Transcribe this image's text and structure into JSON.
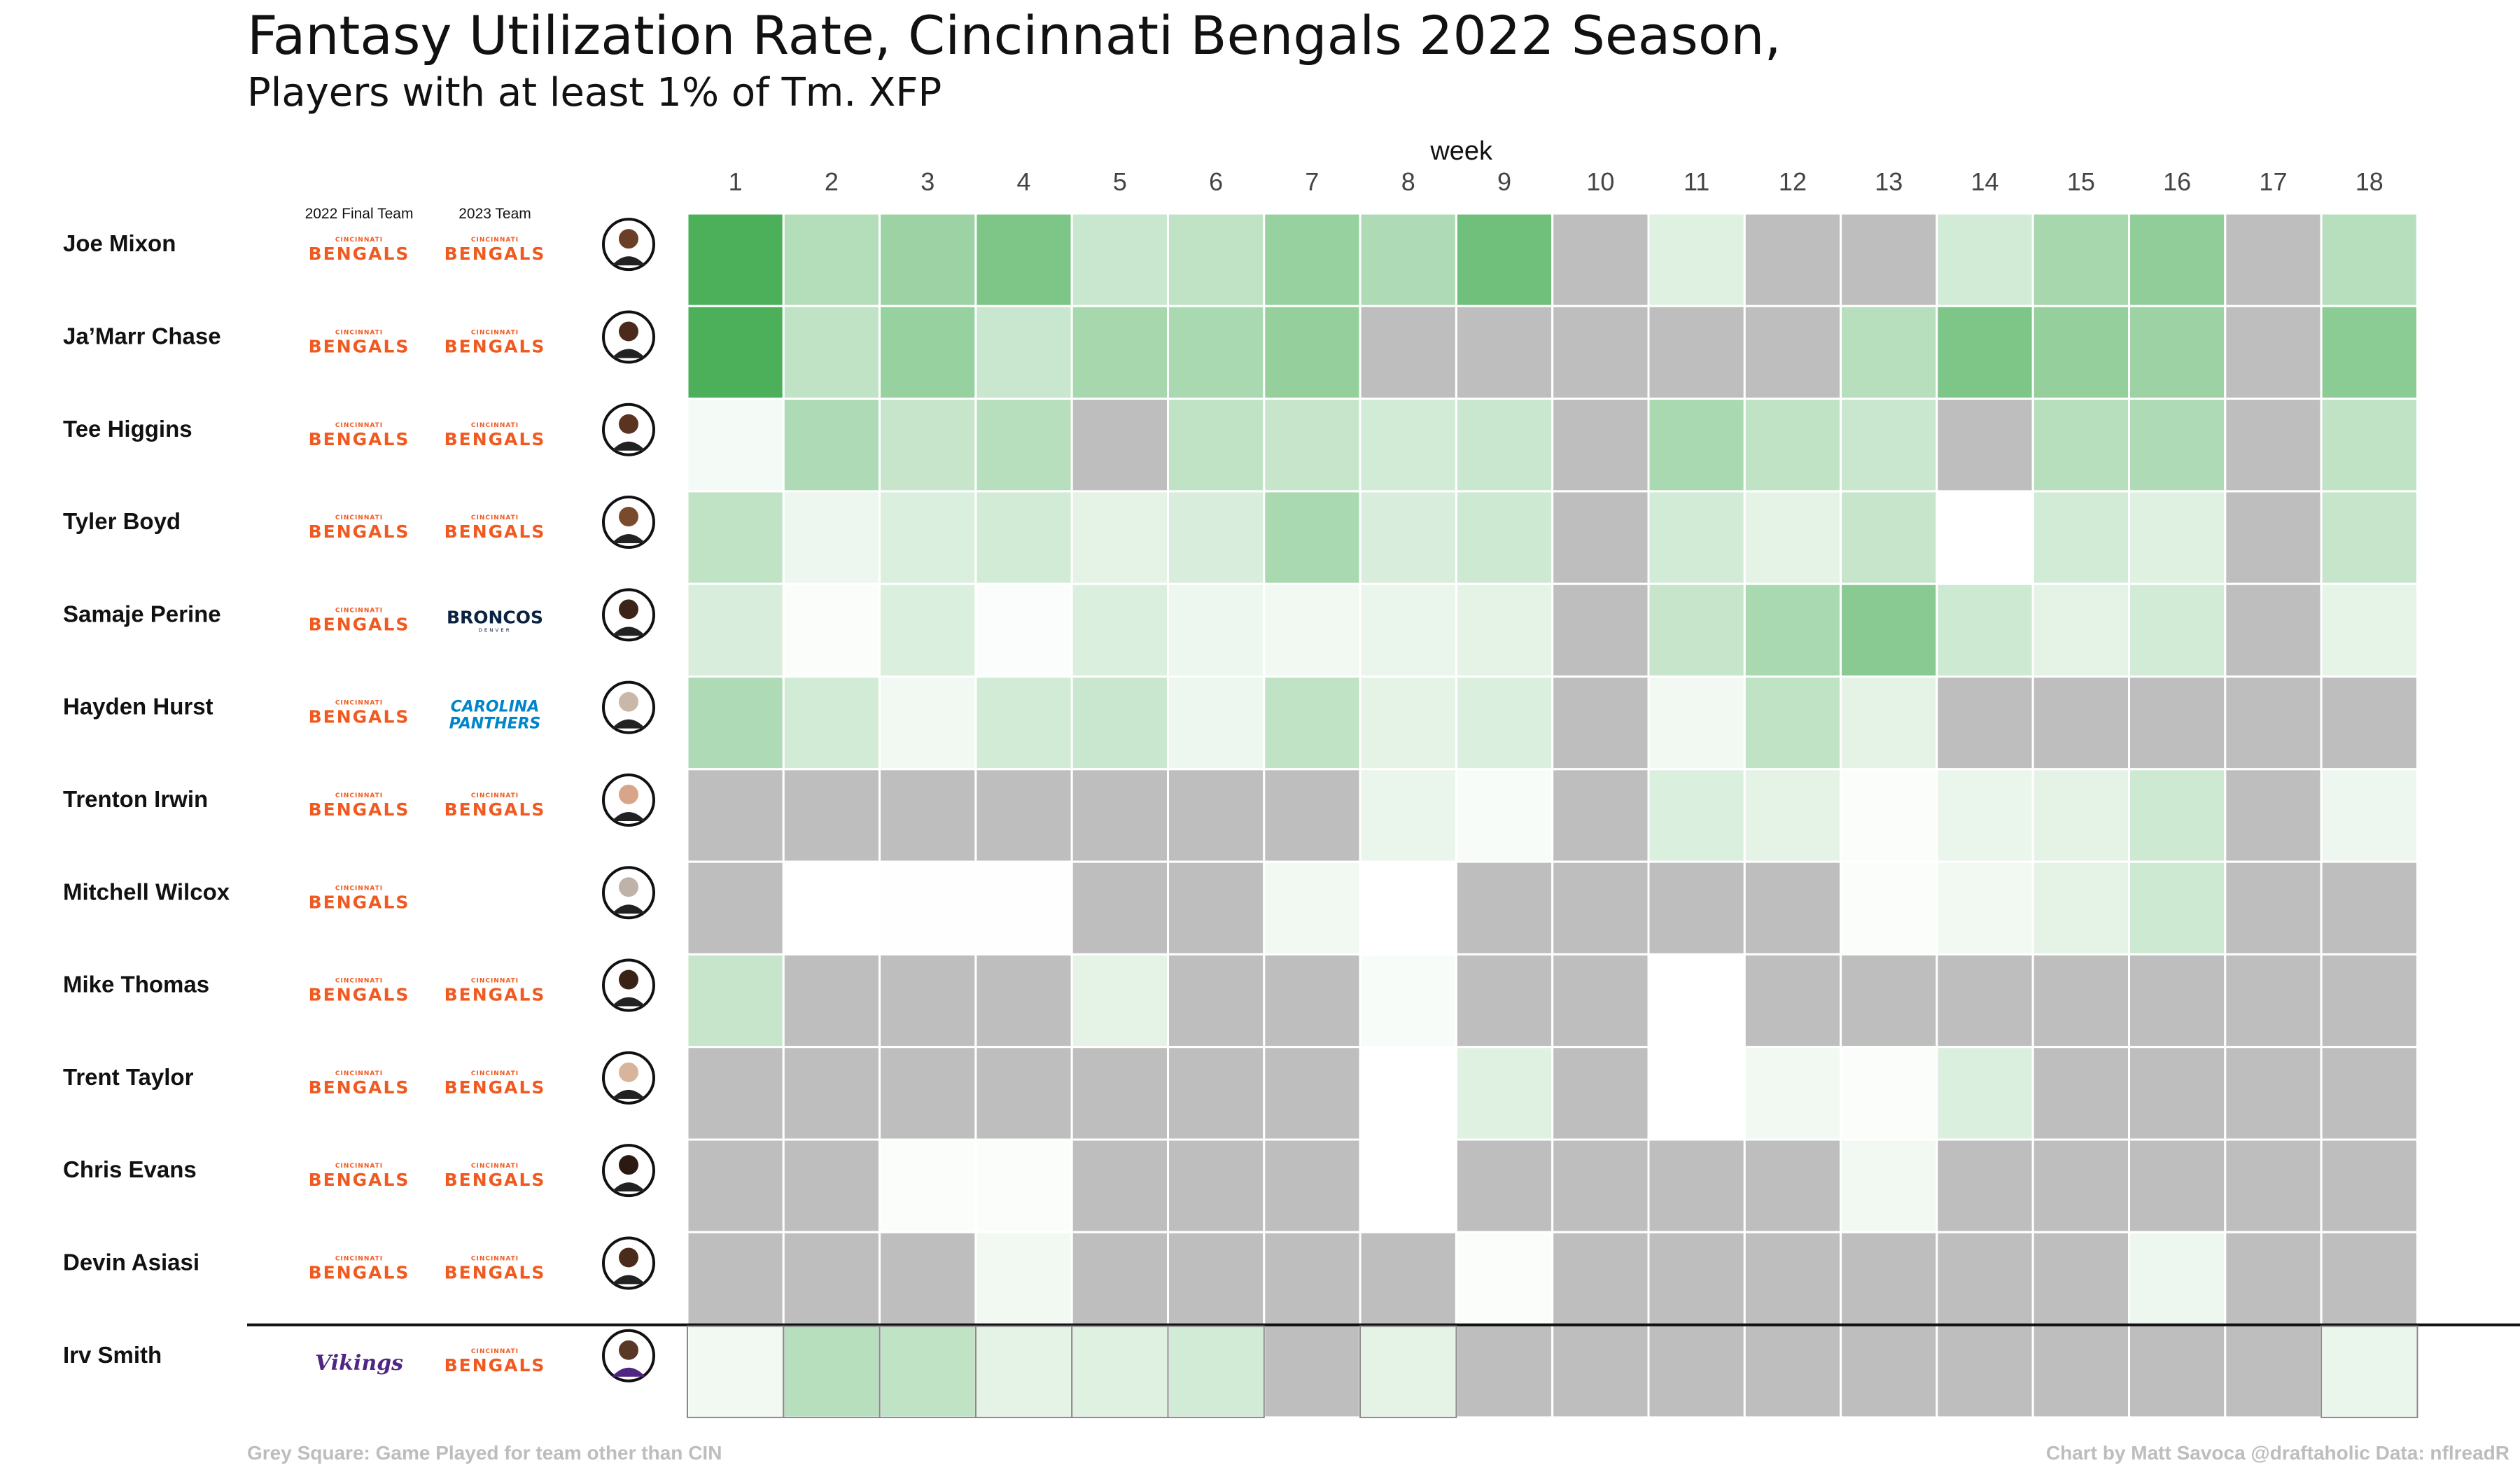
{
  "title": "Fantasy Utilization Rate, Cincinnati Bengals 2022 Season,",
  "subtitle": "Players with at least 1% of Tm. XFP",
  "footer": {
    "left": "Grey Square: Game Played for team other than CIN",
    "right": "Chart by Matt Savoca    @draftaholic    Data: nflreadR"
  },
  "colors": {
    "grey_cell": "#bebebe",
    "green_low": "#ffffff",
    "green_high": "#4caf5a",
    "bengals_orange": "#f05a20",
    "broncos_navy": "#0a2342",
    "panthers_blue": "#0085ca",
    "vikings_purple": "#4f2683"
  },
  "chart_data": {
    "type": "heatmap",
    "x_label": "week",
    "x": [
      "1",
      "2",
      "3",
      "4",
      "5",
      "6",
      "7",
      "8",
      "9",
      "10",
      "11",
      "12",
      "13",
      "14",
      "15",
      "16",
      "17",
      "18"
    ],
    "column_headers": [
      "2022 Final Team",
      "2023 Team"
    ],
    "value_scale": [
      0,
      1
    ],
    "null_meaning": "Grey Square: Game Played for team other than CIN",
    "rows": [
      {
        "player": "Joe Mixon",
        "team_2022": "BENGALS",
        "team_2023": "BENGALS",
        "values": [
          1.0,
          0.42,
          0.55,
          0.72,
          0.3,
          0.35,
          0.58,
          0.45,
          0.8,
          null,
          0.18,
          null,
          null,
          0.25,
          0.5,
          0.62,
          null,
          0.4
        ]
      },
      {
        "player": "Ja'Marr Chase",
        "team_2022": "BENGALS",
        "team_2023": "BENGALS",
        "values": [
          1.0,
          0.35,
          0.58,
          0.3,
          0.5,
          0.48,
          0.6,
          null,
          null,
          null,
          null,
          null,
          0.4,
          0.72,
          0.6,
          0.55,
          null,
          0.65
        ]
      },
      {
        "player": "Tee Higgins",
        "team_2022": "BENGALS",
        "team_2023": "BENGALS",
        "values": [
          0.06,
          0.45,
          0.32,
          0.4,
          null,
          0.35,
          0.32,
          0.25,
          0.3,
          null,
          0.48,
          0.35,
          0.3,
          null,
          0.4,
          0.45,
          null,
          0.35
        ]
      },
      {
        "player": "Tyler Boyd",
        "team_2022": "BENGALS",
        "team_2023": "BENGALS",
        "values": [
          0.35,
          0.1,
          0.2,
          0.25,
          0.15,
          0.22,
          0.48,
          0.22,
          0.28,
          null,
          0.25,
          0.15,
          0.32,
          0.0,
          0.25,
          0.18,
          null,
          0.32
        ]
      },
      {
        "player": "Samaje Perine",
        "team_2022": "BENGALS",
        "team_2023": "BRONCOS",
        "values": [
          0.22,
          0.03,
          0.2,
          0.02,
          0.2,
          0.1,
          0.08,
          0.12,
          0.15,
          null,
          0.32,
          0.48,
          0.66,
          0.28,
          0.15,
          0.25,
          null,
          0.14
        ]
      },
      {
        "player": "Hayden Hurst",
        "team_2022": "BENGALS",
        "team_2023": "CAROLINA PANTHERS",
        "values": [
          0.45,
          0.25,
          0.08,
          0.25,
          0.3,
          0.1,
          0.35,
          0.15,
          0.2,
          null,
          0.08,
          0.35,
          0.15,
          null,
          null,
          null,
          null,
          null
        ]
      },
      {
        "player": "Trenton Irwin",
        "team_2022": "BENGALS",
        "team_2023": "BENGALS",
        "values": [
          null,
          null,
          null,
          null,
          null,
          null,
          null,
          0.12,
          0.04,
          null,
          0.2,
          0.15,
          0.03,
          0.12,
          0.15,
          0.28,
          null,
          0.1
        ]
      },
      {
        "player": "Mitchell Wilcox",
        "team_2022": "BENGALS",
        "team_2023": "",
        "values": [
          null,
          0.0,
          0.01,
          0.01,
          null,
          null,
          0.08,
          0.0,
          null,
          null,
          null,
          null,
          0.03,
          0.08,
          0.15,
          0.28,
          null,
          null
        ]
      },
      {
        "player": "Mike Thomas",
        "team_2022": "BENGALS",
        "team_2023": "BENGALS",
        "values": [
          0.32,
          null,
          null,
          null,
          0.15,
          null,
          null,
          0.04,
          null,
          null,
          0.0,
          null,
          null,
          null,
          null,
          null,
          null,
          null
        ]
      },
      {
        "player": "Trent Taylor",
        "team_2022": "BENGALS",
        "team_2023": "BENGALS",
        "values": [
          null,
          null,
          null,
          null,
          null,
          null,
          null,
          0.0,
          0.18,
          null,
          0.0,
          0.07,
          0.03,
          0.2,
          null,
          null,
          null,
          null
        ]
      },
      {
        "player": "Chris Evans",
        "team_2022": "BENGALS",
        "team_2023": "BENGALS",
        "values": [
          null,
          null,
          0.03,
          0.03,
          null,
          null,
          null,
          0.0,
          null,
          null,
          null,
          null,
          0.08,
          null,
          null,
          null,
          null,
          null
        ]
      },
      {
        "player": "Devin Asiasi",
        "team_2022": "BENGALS",
        "team_2023": "BENGALS",
        "values": [
          null,
          null,
          null,
          0.08,
          null,
          null,
          null,
          null,
          0.03,
          null,
          null,
          null,
          null,
          null,
          null,
          0.1,
          null,
          null
        ]
      },
      {
        "player": "Irv Smith",
        "team_2022": "VIKINGS",
        "team_2023": "BENGALS",
        "values": [
          0.08,
          0.4,
          0.35,
          0.15,
          0.18,
          0.25,
          null,
          0.15,
          null,
          null,
          null,
          null,
          null,
          null,
          null,
          null,
          null,
          0.12
        ]
      }
    ]
  }
}
